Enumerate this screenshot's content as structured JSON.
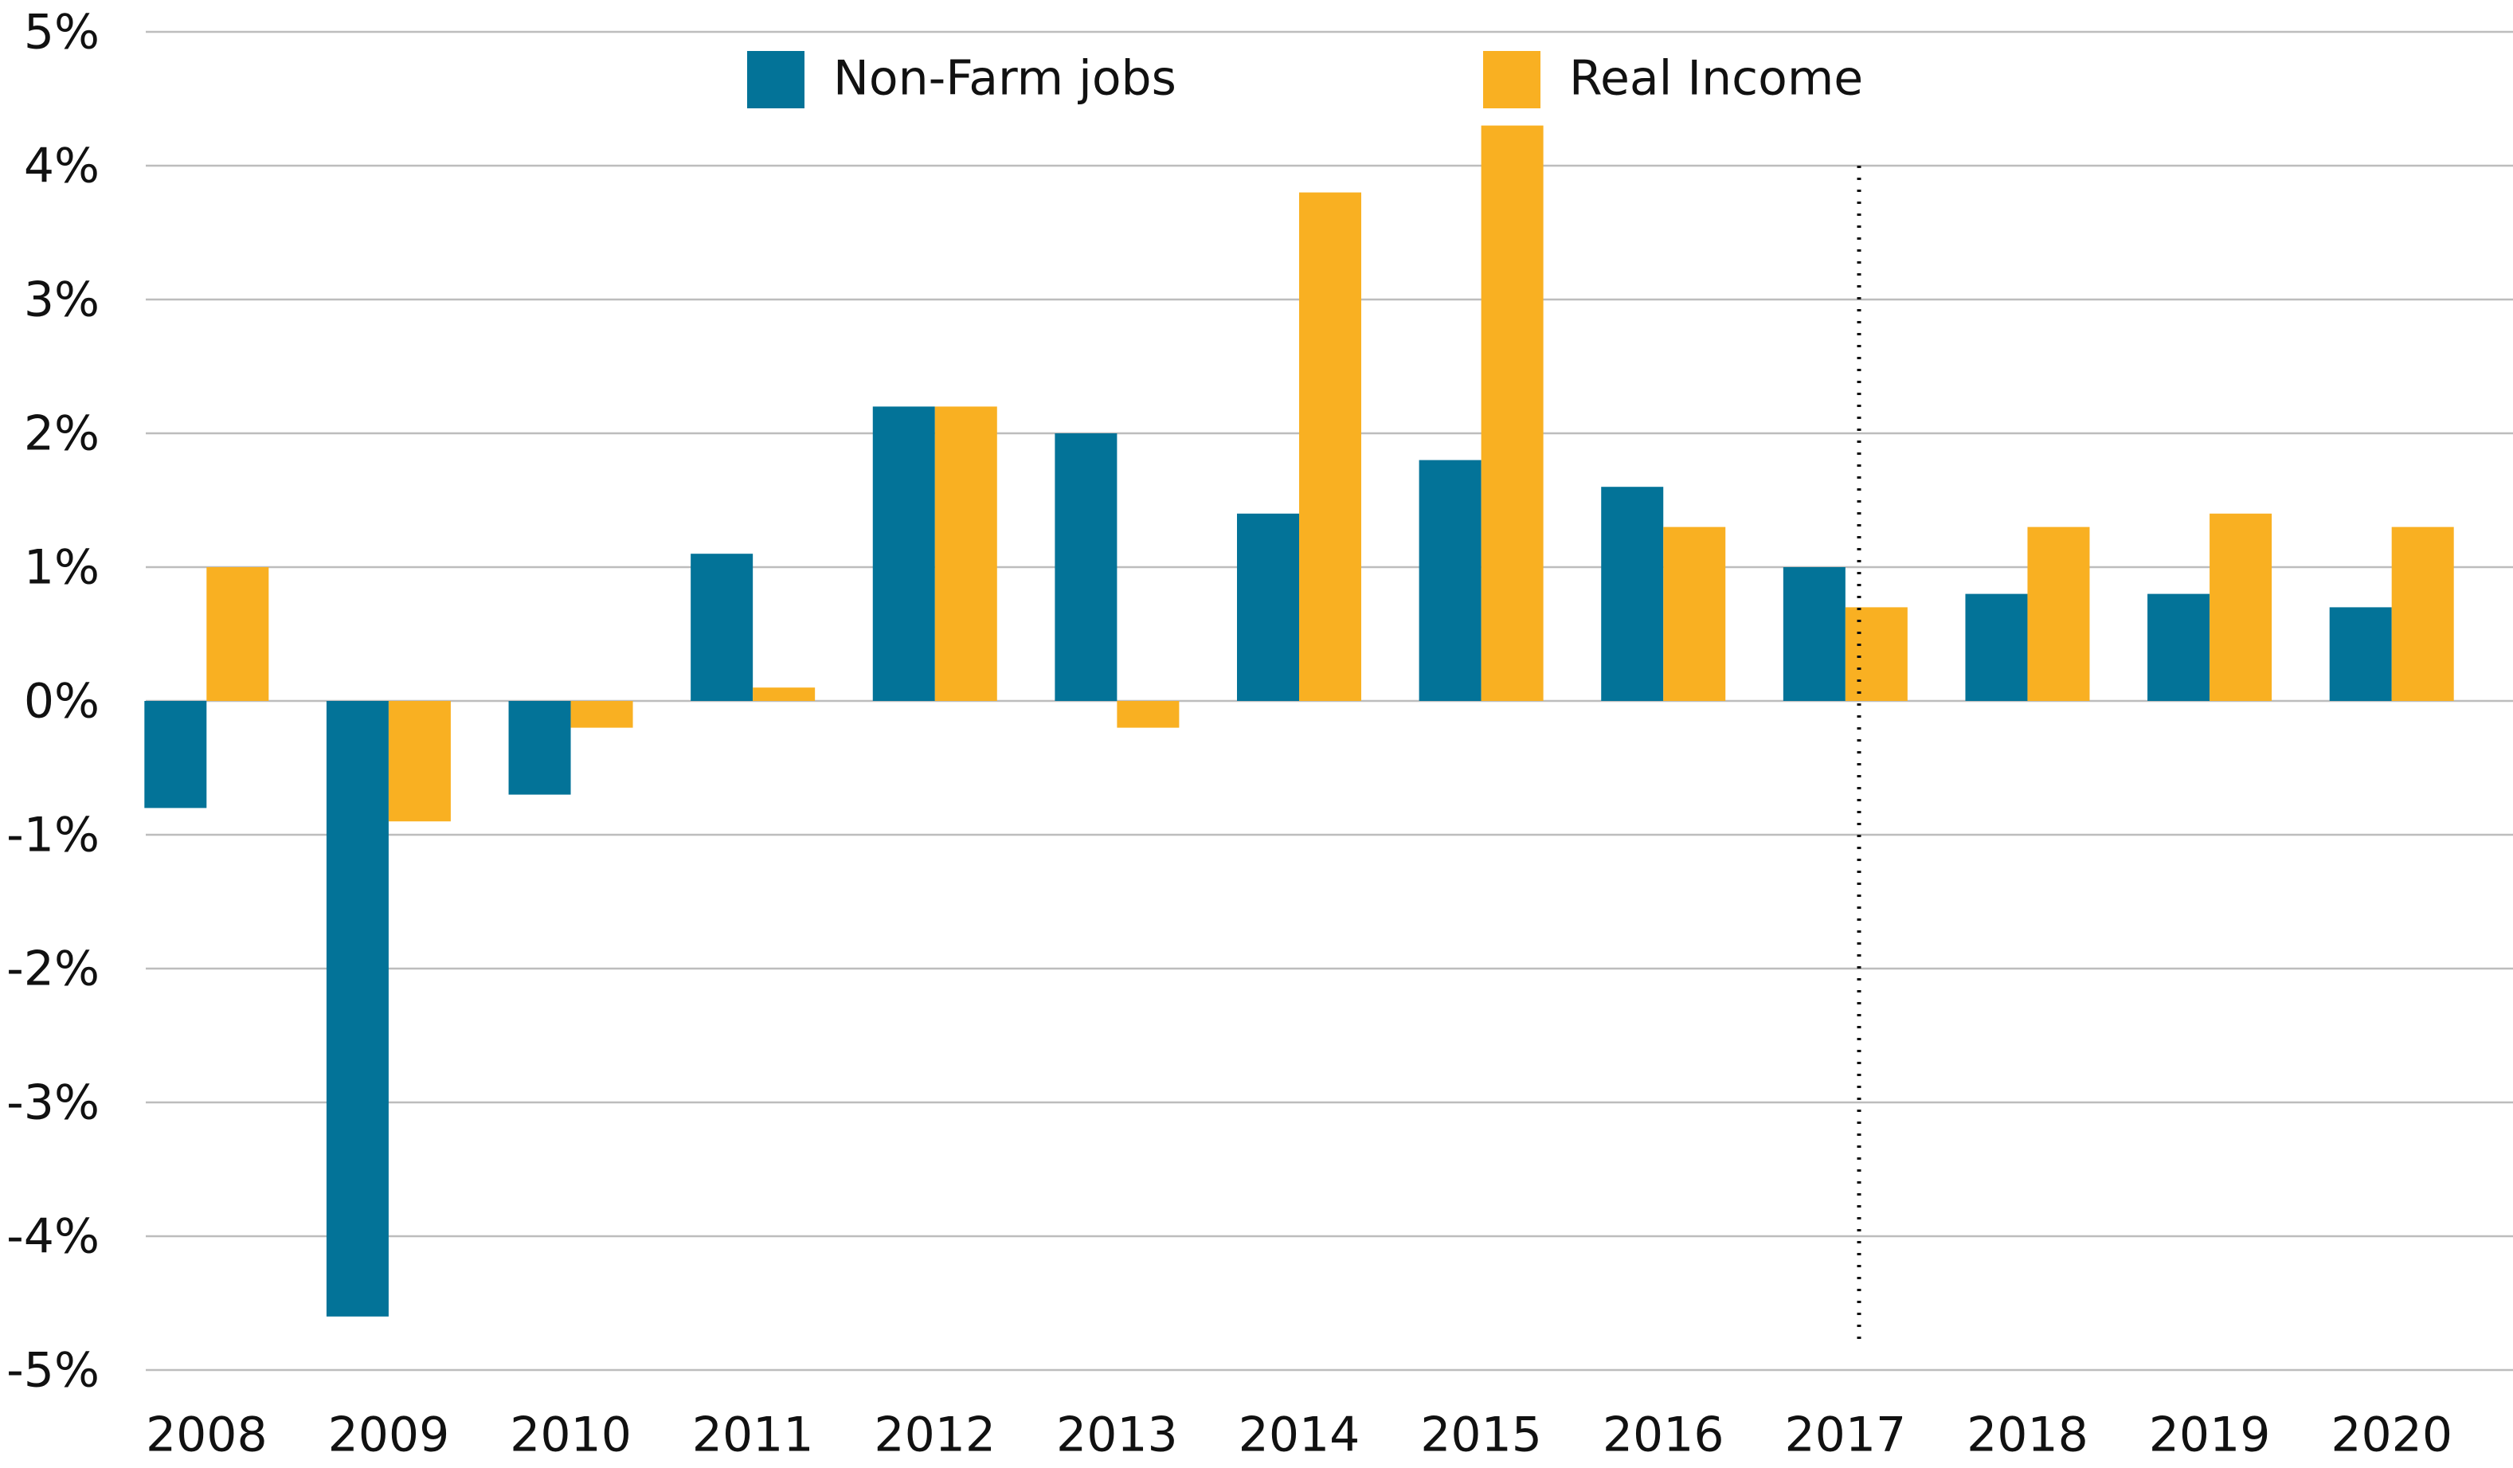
{
  "chart_data": {
    "type": "bar",
    "categories": [
      "2008",
      "2009",
      "2010",
      "2011",
      "2012",
      "2013",
      "2014",
      "2015",
      "2016",
      "2017",
      "2018",
      "2019",
      "2020"
    ],
    "series": [
      {
        "name": "Non-Farm jobs",
        "color": "#037398",
        "values": [
          -0.8,
          -4.6,
          -0.7,
          1.1,
          2.2,
          2.0,
          1.4,
          1.8,
          1.6,
          1.0,
          0.8,
          0.8,
          0.7
        ]
      },
      {
        "name": "Real Income",
        "color": "#f9b022",
        "values": [
          1.0,
          -0.9,
          -0.2,
          0.1,
          2.2,
          -0.2,
          3.8,
          4.3,
          1.3,
          0.7,
          1.3,
          1.4,
          1.3
        ]
      }
    ],
    "ylim": [
      -5,
      5
    ],
    "yticks": [
      {
        "value": -5,
        "label": "-5%"
      },
      {
        "value": -4,
        "label": "-4%"
      },
      {
        "value": -3,
        "label": "-3%"
      },
      {
        "value": -2,
        "label": "-2%"
      },
      {
        "value": -1,
        "label": "-1%"
      },
      {
        "value": 0,
        "label": "0%"
      },
      {
        "value": 1,
        "label": "1%"
      },
      {
        "value": 2,
        "label": "2%"
      },
      {
        "value": 3,
        "label": "3%"
      },
      {
        "value": 4,
        "label": "4%"
      },
      {
        "value": 5,
        "label": "5%"
      }
    ],
    "grid": true,
    "legend": "top"
  }
}
